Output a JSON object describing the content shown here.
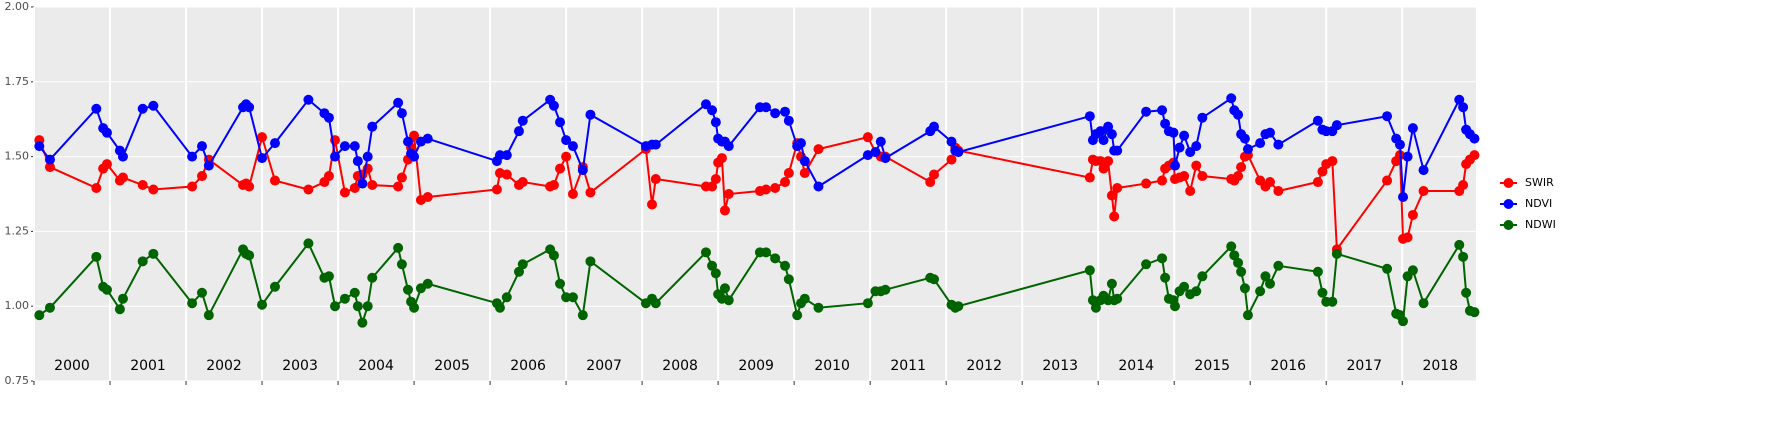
{
  "chart_data": {
    "type": "line",
    "x": [
      2000.07,
      2000.21,
      2000.82,
      2000.91,
      2000.96,
      2001.13,
      2001.17,
      2001.43,
      2001.57,
      2002.08,
      2002.21,
      2002.3,
      2002.75,
      2002.79,
      2002.83,
      2003.0,
      2003.17,
      2003.61,
      2003.82,
      2003.88,
      2003.96,
      2004.09,
      2004.22,
      2004.26,
      2004.32,
      2004.39,
      2004.45,
      2004.79,
      2004.84,
      2004.92,
      2004.96,
      2005.0,
      2005.09,
      2005.18,
      2006.09,
      2006.13,
      2006.22,
      2006.38,
      2006.43,
      2006.79,
      2006.84,
      2006.92,
      2007.0,
      2007.09,
      2007.22,
      2007.32,
      2008.05,
      2008.13,
      2008.18,
      2008.84,
      2008.92,
      2008.97,
      2009.0,
      2009.05,
      2009.09,
      2009.14,
      2009.55,
      2009.63,
      2009.75,
      2009.88,
      2009.93,
      2010.04,
      2010.09,
      2010.14,
      2010.32,
      2010.97,
      2011.07,
      2011.14,
      2011.2,
      2011.79,
      2011.84,
      2012.07,
      2012.12,
      2012.16,
      2013.89,
      2013.93,
      2013.97,
      2014.03,
      2014.07,
      2014.13,
      2014.18,
      2014.21,
      2014.25,
      2014.63,
      2014.84,
      2014.88,
      2014.93,
      2014.99,
      2015.01,
      2015.07,
      2015.13,
      2015.21,
      2015.29,
      2015.37,
      2015.75,
      2015.79,
      2015.84,
      2015.88,
      2015.93,
      2015.97,
      2016.13,
      2016.2,
      2016.26,
      2016.37,
      2016.89,
      2016.95,
      2017.0,
      2017.08,
      2017.14,
      2017.8,
      2017.92,
      2017.97,
      2018.01,
      2018.07,
      2018.14,
      2018.28,
      2018.75,
      2018.8,
      2018.84,
      2018.89,
      2018.95
    ],
    "series": [
      {
        "name": "SWIR",
        "color": "#ff0000",
        "values": [
          1.555,
          1.465,
          1.395,
          1.46,
          1.475,
          1.42,
          1.43,
          1.405,
          1.39,
          1.4,
          1.435,
          1.49,
          1.405,
          1.41,
          1.4,
          1.565,
          1.42,
          1.39,
          1.415,
          1.435,
          1.555,
          1.38,
          1.395,
          1.435,
          1.44,
          1.46,
          1.405,
          1.4,
          1.43,
          1.49,
          1.53,
          1.57,
          1.355,
          1.365,
          1.39,
          1.445,
          1.44,
          1.405,
          1.415,
          1.4,
          1.405,
          1.46,
          1.5,
          1.375,
          1.465,
          1.38,
          1.525,
          1.34,
          1.425,
          1.4,
          1.4,
          1.425,
          1.48,
          1.495,
          1.32,
          1.375,
          1.385,
          1.39,
          1.395,
          1.415,
          1.445,
          1.545,
          1.5,
          1.445,
          1.525,
          1.565,
          1.515,
          1.5,
          1.5,
          1.415,
          1.44,
          1.49,
          1.53,
          1.52,
          1.43,
          1.49,
          1.485,
          1.485,
          1.46,
          1.485,
          1.37,
          1.3,
          1.395,
          1.41,
          1.42,
          1.46,
          1.47,
          1.48,
          1.425,
          1.43,
          1.435,
          1.385,
          1.47,
          1.435,
          1.425,
          1.42,
          1.435,
          1.465,
          1.5,
          1.505,
          1.42,
          1.4,
          1.415,
          1.385,
          1.415,
          1.45,
          1.475,
          1.485,
          1.19,
          1.42,
          1.485,
          1.505,
          1.225,
          1.23,
          1.305,
          1.385,
          1.385,
          1.405,
          1.475,
          1.49,
          1.505
        ]
      },
      {
        "name": "NDVI",
        "color": "#0000ff",
        "values": [
          1.535,
          1.49,
          1.66,
          1.595,
          1.58,
          1.52,
          1.5,
          1.66,
          1.67,
          1.5,
          1.535,
          1.47,
          1.665,
          1.675,
          1.665,
          1.495,
          1.545,
          1.69,
          1.645,
          1.63,
          1.5,
          1.535,
          1.535,
          1.485,
          1.41,
          1.5,
          1.6,
          1.68,
          1.645,
          1.55,
          1.51,
          1.5,
          1.55,
          1.56,
          1.485,
          1.505,
          1.505,
          1.585,
          1.62,
          1.69,
          1.67,
          1.615,
          1.555,
          1.535,
          1.455,
          1.64,
          1.535,
          1.54,
          1.54,
          1.675,
          1.655,
          1.615,
          1.56,
          1.55,
          1.55,
          1.535,
          1.665,
          1.665,
          1.645,
          1.65,
          1.62,
          1.535,
          1.545,
          1.485,
          1.4,
          1.505,
          1.515,
          1.55,
          1.495,
          1.585,
          1.6,
          1.55,
          1.52,
          1.515,
          1.635,
          1.555,
          1.575,
          1.585,
          1.555,
          1.6,
          1.575,
          1.52,
          1.52,
          1.65,
          1.655,
          1.61,
          1.585,
          1.58,
          1.47,
          1.53,
          1.57,
          1.515,
          1.535,
          1.63,
          1.695,
          1.655,
          1.64,
          1.575,
          1.56,
          1.525,
          1.545,
          1.575,
          1.58,
          1.54,
          1.62,
          1.59,
          1.585,
          1.585,
          1.605,
          1.635,
          1.56,
          1.54,
          1.365,
          1.5,
          1.595,
          1.455,
          1.69,
          1.665,
          1.59,
          1.575,
          1.56
        ]
      },
      {
        "name": "NDWI",
        "color": "#006400",
        "values": [
          0.97,
          0.995,
          1.165,
          1.065,
          1.055,
          0.99,
          1.025,
          1.15,
          1.175,
          1.01,
          1.045,
          0.97,
          1.19,
          1.175,
          1.17,
          1.005,
          1.065,
          1.21,
          1.095,
          1.1,
          1.0,
          1.025,
          1.045,
          1.0,
          0.945,
          1.0,
          1.095,
          1.195,
          1.14,
          1.055,
          1.015,
          0.995,
          1.06,
          1.075,
          1.01,
          0.995,
          1.03,
          1.115,
          1.14,
          1.19,
          1.17,
          1.075,
          1.03,
          1.03,
          0.97,
          1.15,
          1.01,
          1.025,
          1.01,
          1.18,
          1.135,
          1.11,
          1.04,
          1.025,
          1.06,
          1.02,
          1.18,
          1.18,
          1.16,
          1.135,
          1.09,
          0.97,
          1.01,
          1.025,
          0.995,
          1.01,
          1.05,
          1.05,
          1.055,
          1.095,
          1.09,
          1.005,
          0.995,
          1.0,
          1.12,
          1.02,
          0.995,
          1.02,
          1.035,
          1.02,
          1.075,
          1.02,
          1.025,
          1.14,
          1.16,
          1.095,
          1.025,
          1.02,
          1.0,
          1.05,
          1.065,
          1.04,
          1.05,
          1.1,
          1.2,
          1.17,
          1.145,
          1.115,
          1.06,
          0.97,
          1.05,
          1.1,
          1.075,
          1.135,
          1.115,
          1.045,
          1.015,
          1.015,
          1.175,
          1.125,
          0.975,
          0.97,
          0.95,
          1.1,
          1.12,
          1.01,
          1.205,
          1.165,
          1.045,
          0.985,
          0.98
        ]
      }
    ],
    "xlim": [
      2000,
      2018.97
    ],
    "xticks": [
      2000,
      2001,
      2002,
      2003,
      2004,
      2005,
      2006,
      2007,
      2008,
      2009,
      2010,
      2011,
      2012,
      2013,
      2014,
      2015,
      2016,
      2017,
      2018
    ],
    "ylim": [
      0.75,
      2
    ],
    "yticks": [
      0.75,
      {
        "value": 1,
        "label": "1.00"
      },
      1.25,
      {
        "value": 1.5,
        "label": "1.50"
      },
      1.75,
      {
        "value": 2,
        "label": "2.00"
      }
    ],
    "grid": true,
    "legend": "right"
  }
}
